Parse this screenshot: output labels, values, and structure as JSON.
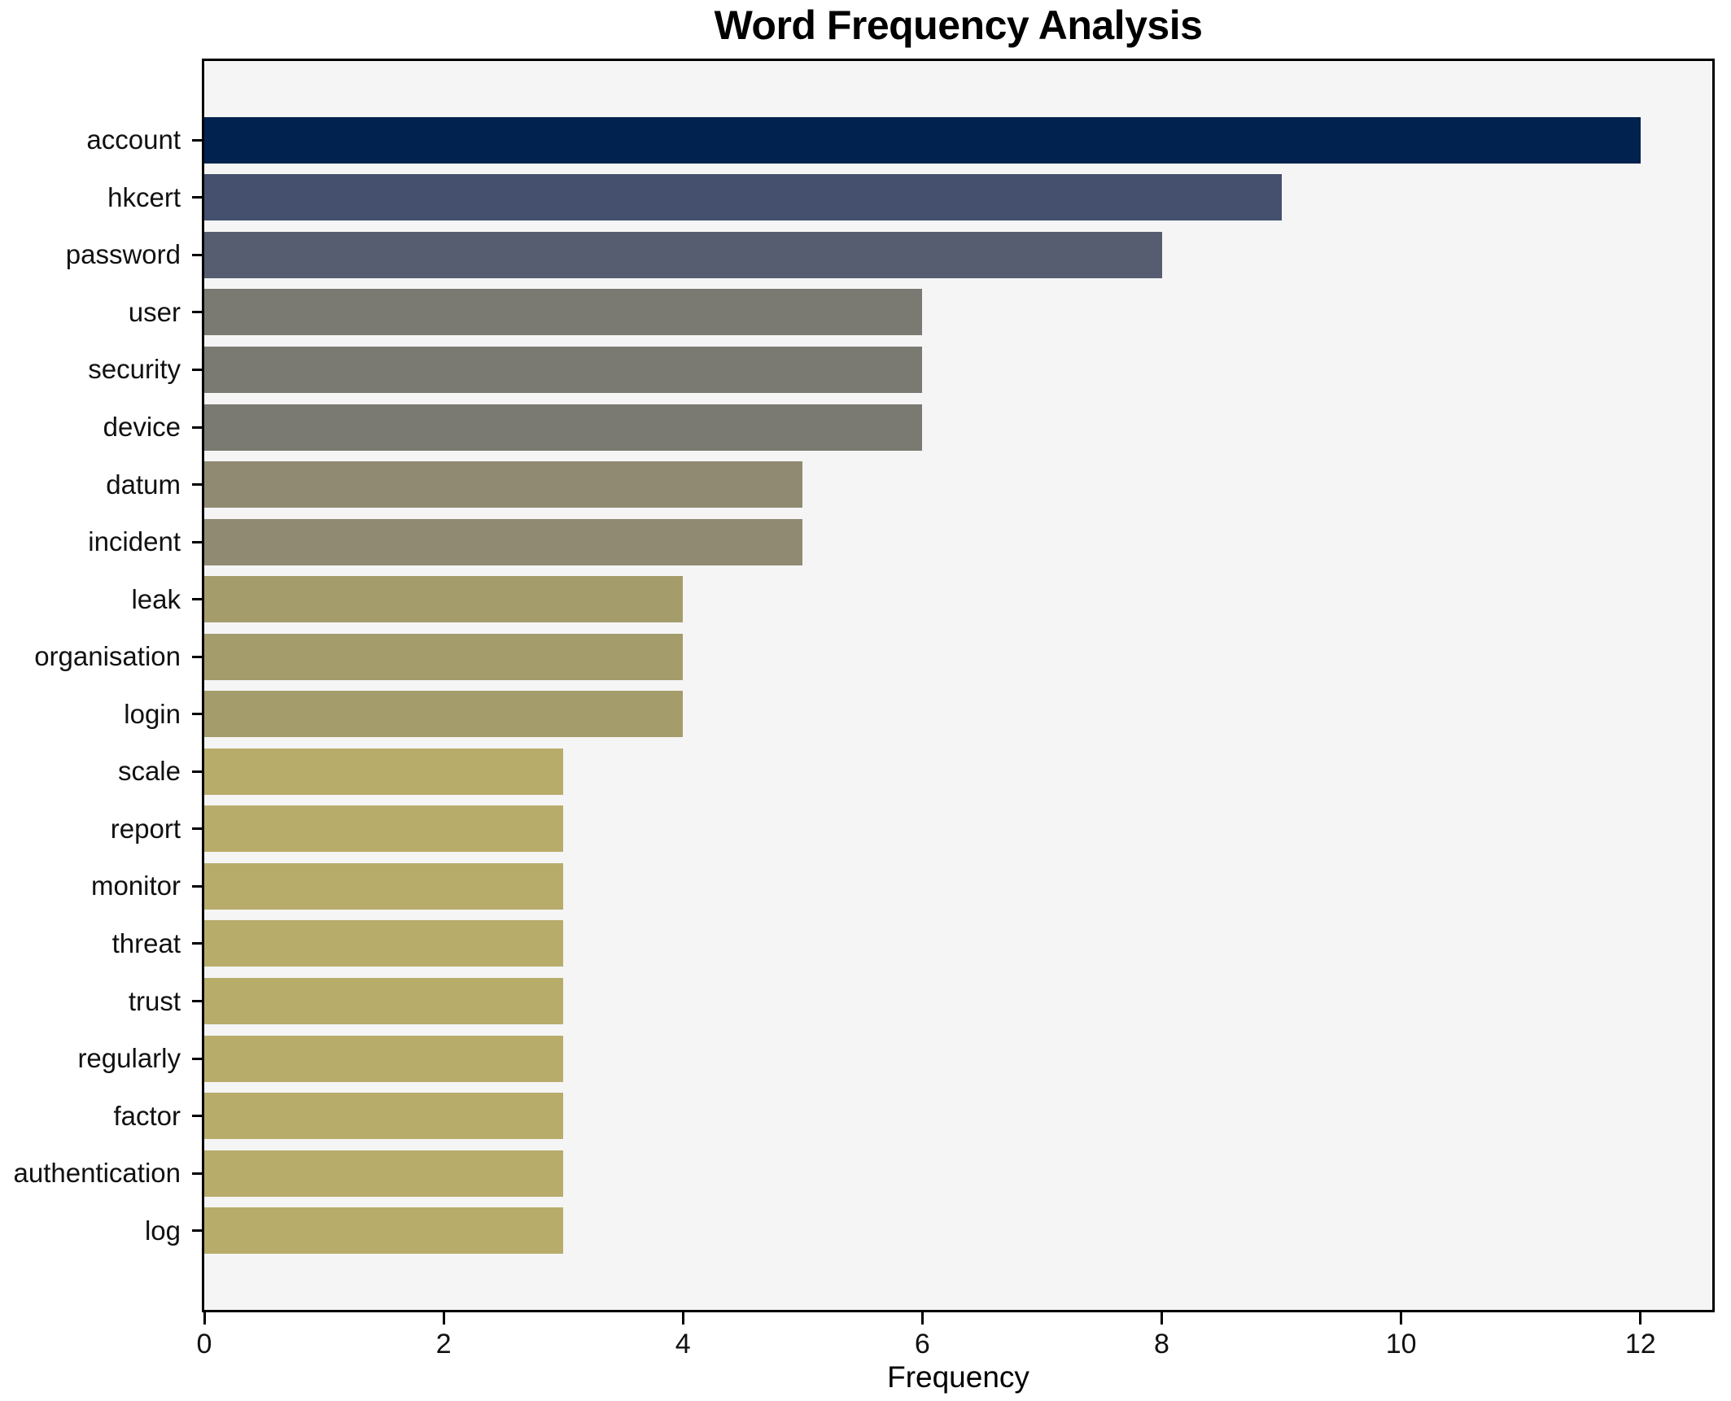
{
  "chart_data": {
    "type": "bar",
    "orientation": "horizontal",
    "title": "Word Frequency Analysis",
    "xlabel": "Frequency",
    "ylabel": "",
    "categories": [
      "account",
      "hkcert",
      "password",
      "user",
      "security",
      "device",
      "datum",
      "incident",
      "leak",
      "organisation",
      "login",
      "scale",
      "report",
      "monitor",
      "threat",
      "trust",
      "regularly",
      "factor",
      "authentication",
      "log"
    ],
    "values": [
      12,
      9,
      8,
      6,
      6,
      6,
      5,
      5,
      4,
      4,
      4,
      3,
      3,
      3,
      3,
      3,
      3,
      3,
      3,
      3
    ],
    "bar_colors": [
      "#01224E",
      "#44506E",
      "#575D70",
      "#7B7A72",
      "#7B7A72",
      "#7B7A72",
      "#908A73",
      "#908A73",
      "#A59C6B",
      "#A59C6B",
      "#A59C6B",
      "#B8AC6B",
      "#B8AC6B",
      "#B8AC6B",
      "#B8AC6B",
      "#B8AC6B",
      "#B8AC6B",
      "#B8AC6B",
      "#B8AC6B",
      "#B8AC6B"
    ],
    "x_ticks": [
      0,
      2,
      4,
      6,
      8,
      10,
      12
    ],
    "xlim": [
      0,
      12.6
    ],
    "grid": false,
    "legend": null,
    "colors": {
      "figure_background": "#FFFFFF",
      "plot_background": "#F5F5F6",
      "spine": "#000000",
      "text": "#000000"
    }
  }
}
